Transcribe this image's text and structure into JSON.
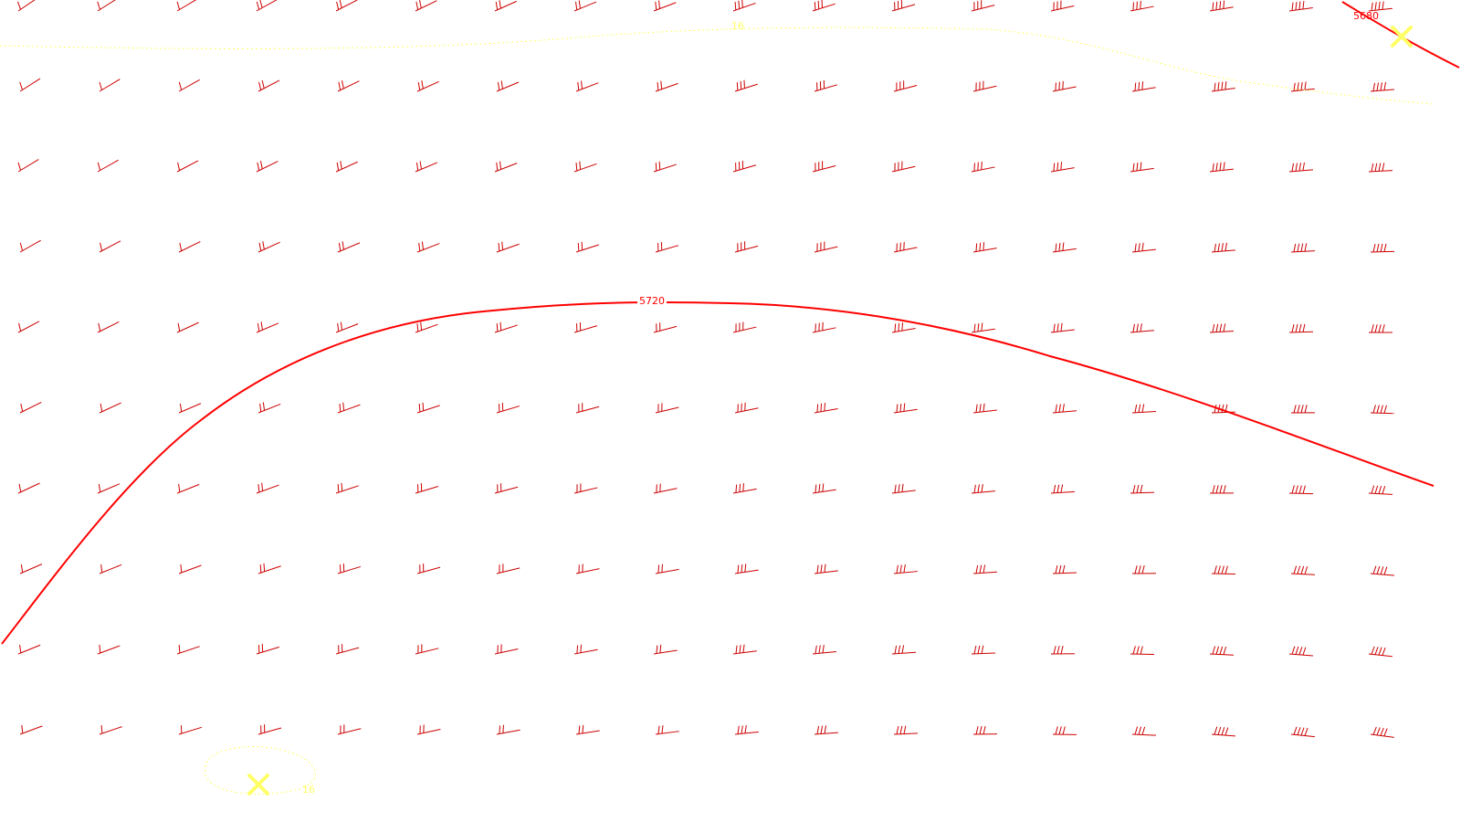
{
  "map": {
    "background": "#ffffff",
    "height_contours": [
      {
        "label": "5680",
        "color": "#ff0000"
      },
      {
        "label": "5720",
        "color": "#ff0000"
      }
    ],
    "dotted_contours": [
      {
        "label": "16",
        "color": "#ffff66"
      },
      {
        "label": "16",
        "color": "#ffff66"
      }
    ],
    "markers": [
      {
        "symbol": "X",
        "color": "#ffff66"
      },
      {
        "symbol": "X",
        "color": "#ffff66"
      }
    ],
    "wind_barb_color": "#cc0000"
  }
}
